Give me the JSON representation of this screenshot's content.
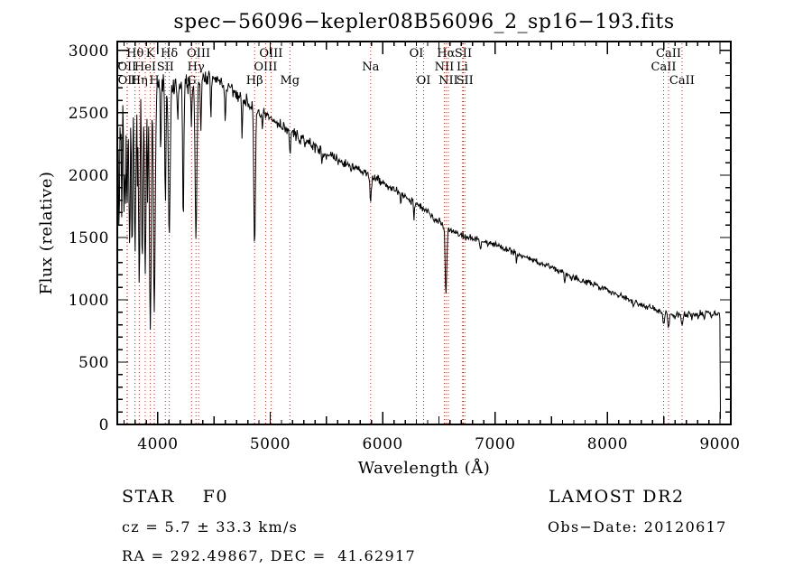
{
  "title": "spec−56096−kepler08B56096_2_sp16−193.fits",
  "annotations": {
    "class_line": "STAR    F0",
    "survey": "LAMOST DR2",
    "cz_line": "cz = 5.7 ± 33.3 km/s",
    "obs_date": "Obs−Date: 20120617",
    "ra_dec": "RA = 292.49867, DEC =  41.62917"
  },
  "chart_data": {
    "type": "line",
    "title": "spec−56096−kepler08B56096_2_sp16−193.fits",
    "xlabel": "Wavelength (Å)",
    "ylabel": "Flux (relative)",
    "xlim": [
      3640,
      9096
    ],
    "ylim": [
      0,
      3072
    ],
    "x_ticks": [
      4000,
      5000,
      6000,
      7000,
      8000,
      9000
    ],
    "y_ticks": [
      0,
      500,
      1000,
      1500,
      2000,
      2500,
      3000
    ],
    "x_minor_step": 100,
    "y_minor_step": 100,
    "line_color": "#000000",
    "marker_line_color": "#a03a30",
    "background": "#ffffff",
    "spectral_lines": [
      {
        "label": "OII",
        "wavelength": 3727,
        "row": 2
      },
      {
        "label": "OII",
        "wavelength": 3729,
        "row": 3
      },
      {
        "label": "Hθ",
        "wavelength": 3798,
        "row": 1
      },
      {
        "label": "Hη",
        "wavelength": 3835,
        "row": 3
      },
      {
        "label": "HeI",
        "wavelength": 3889,
        "row": 2
      },
      {
        "label": "K",
        "wavelength": 3934,
        "row": 1
      },
      {
        "label": "H",
        "wavelength": 3969,
        "row": 3
      },
      {
        "label": "SII",
        "wavelength": 4068,
        "row": 2
      },
      {
        "label": "Hδ",
        "wavelength": 4102,
        "row": 1
      },
      {
        "label": "G",
        "wavelength": 4300,
        "row": 3
      },
      {
        "label": "Hγ",
        "wavelength": 4340,
        "row": 2
      },
      {
        "label": "OIII",
        "wavelength": 4363,
        "row": 1
      },
      {
        "label": "Hβ",
        "wavelength": 4861,
        "row": 3
      },
      {
        "label": "OIII",
        "wavelength": 4959,
        "row": 2
      },
      {
        "label": "OIII",
        "wavelength": 5007,
        "row": 1
      },
      {
        "label": "Mg",
        "wavelength": 5175,
        "row": 3
      },
      {
        "label": "Na",
        "wavelength": 5893,
        "row": 2
      },
      {
        "label": "OI",
        "wavelength": 6300,
        "row": 1
      },
      {
        "label": "OI",
        "wavelength": 6364,
        "row": 3
      },
      {
        "label": "NII",
        "wavelength": 6548,
        "row": 2
      },
      {
        "label": "Hα",
        "wavelength": 6563,
        "row": 1
      },
      {
        "label": "NII",
        "wavelength": 6584,
        "row": 3
      },
      {
        "label": "Li",
        "wavelength": 6708,
        "row": 2
      },
      {
        "label": "SII",
        "wavelength": 6717,
        "row": 1
      },
      {
        "label": "SII",
        "wavelength": 6731,
        "row": 3
      },
      {
        "label": "CaII",
        "wavelength": 8498,
        "row": 2
      },
      {
        "label": "CaII",
        "wavelength": 8542,
        "row": 1
      },
      {
        "label": "CaII",
        "wavelength": 8662,
        "row": 3
      }
    ],
    "spectrum": {
      "seed": 7,
      "sample_step": 5,
      "end_wavelength": 9006,
      "end_drop": {
        "wavelength": 9000,
        "flux": 25
      },
      "continuum": [
        [
          3640,
          2380
        ],
        [
          3680,
          2520
        ],
        [
          3720,
          2610
        ],
        [
          3760,
          2660
        ],
        [
          3800,
          2700
        ],
        [
          3860,
          2720
        ],
        [
          3920,
          2730
        ],
        [
          3980,
          2750
        ],
        [
          4050,
          2740
        ],
        [
          4150,
          2690
        ],
        [
          4250,
          2720
        ],
        [
          4330,
          2760
        ],
        [
          4420,
          2780
        ],
        [
          4520,
          2770
        ],
        [
          4620,
          2700
        ],
        [
          4720,
          2640
        ],
        [
          4800,
          2590
        ],
        [
          4900,
          2510
        ],
        [
          5000,
          2450
        ],
        [
          5100,
          2400
        ],
        [
          5200,
          2340
        ],
        [
          5300,
          2280
        ],
        [
          5400,
          2230
        ],
        [
          5500,
          2170
        ],
        [
          5600,
          2120
        ],
        [
          5700,
          2080
        ],
        [
          5800,
          2030
        ],
        [
          5900,
          1990
        ],
        [
          6000,
          1940
        ],
        [
          6100,
          1880
        ],
        [
          6200,
          1830
        ],
        [
          6300,
          1770
        ],
        [
          6400,
          1700
        ],
        [
          6500,
          1630
        ],
        [
          6600,
          1560
        ],
        [
          6700,
          1520
        ],
        [
          6800,
          1490
        ],
        [
          6900,
          1465
        ],
        [
          7000,
          1445
        ],
        [
          7100,
          1410
        ],
        [
          7200,
          1370
        ],
        [
          7300,
          1330
        ],
        [
          7400,
          1295
        ],
        [
          7500,
          1260
        ],
        [
          7600,
          1225
        ],
        [
          7700,
          1185
        ],
        [
          7800,
          1145
        ],
        [
          7900,
          1115
        ],
        [
          8000,
          1080
        ],
        [
          8100,
          1040
        ],
        [
          8200,
          1000
        ],
        [
          8300,
          965
        ],
        [
          8400,
          930
        ],
        [
          8500,
          900
        ],
        [
          8600,
          885
        ],
        [
          8700,
          880
        ],
        [
          8800,
          890
        ],
        [
          8900,
          900
        ],
        [
          8960,
          885
        ],
        [
          9006,
          865
        ]
      ],
      "absorption_lines": [
        [
          3655,
          1600,
          5
        ],
        [
          3680,
          1750,
          4
        ],
        [
          3700,
          1850,
          4
        ],
        [
          3712,
          1700,
          5
        ],
        [
          3727,
          1580,
          5
        ],
        [
          3750,
          1470,
          6
        ],
        [
          3771,
          1500,
          6
        ],
        [
          3798,
          1330,
          7
        ],
        [
          3820,
          1780,
          4
        ],
        [
          3835,
          1140,
          7
        ],
        [
          3862,
          1260,
          6
        ],
        [
          3889,
          1190,
          7
        ],
        [
          3910,
          1700,
          4
        ],
        [
          3934,
          720,
          8
        ],
        [
          3969,
          900,
          8
        ],
        [
          4026,
          2120,
          4
        ],
        [
          4068,
          1750,
          5
        ],
        [
          4102,
          1490,
          8
        ],
        [
          4178,
          2400,
          4
        ],
        [
          4227,
          1560,
          5
        ],
        [
          4300,
          2430,
          5
        ],
        [
          4340,
          1490,
          8
        ],
        [
          4383,
          2350,
          4
        ],
        [
          4472,
          2450,
          4
        ],
        [
          4600,
          2390,
          4
        ],
        [
          4750,
          2280,
          4
        ],
        [
          4861,
          1390,
          7
        ],
        [
          4930,
          2330,
          4
        ],
        [
          5175,
          2180,
          6
        ],
        [
          5270,
          2250,
          4
        ],
        [
          5460,
          2070,
          4
        ],
        [
          5893,
          1800,
          6
        ],
        [
          6160,
          1760,
          4
        ],
        [
          6278,
          1670,
          4
        ],
        [
          6563,
          1050,
          7
        ],
        [
          6868,
          1400,
          4
        ],
        [
          7190,
          1300,
          4
        ],
        [
          7620,
          1140,
          5
        ],
        [
          7680,
          1170,
          4
        ],
        [
          8230,
          940,
          4
        ],
        [
          8498,
          800,
          7
        ],
        [
          8542,
          780,
          8
        ],
        [
          8598,
          855,
          6
        ],
        [
          8662,
          790,
          8
        ],
        [
          8750,
          845,
          6
        ],
        [
          8806,
          862,
          5
        ],
        [
          8863,
          850,
          6
        ],
        [
          8920,
          858,
          5
        ]
      ],
      "noise_sigma": [
        [
          3640,
          270
        ],
        [
          3760,
          230
        ],
        [
          3800,
          140
        ],
        [
          3900,
          115
        ],
        [
          4000,
          90
        ],
        [
          4300,
          80
        ],
        [
          4600,
          65
        ],
        [
          4900,
          55
        ],
        [
          5200,
          48
        ],
        [
          5600,
          42
        ],
        [
          6000,
          38
        ],
        [
          6500,
          33
        ],
        [
          7000,
          30
        ],
        [
          7600,
          27
        ],
        [
          8200,
          26
        ],
        [
          8700,
          29
        ],
        [
          9006,
          28
        ]
      ]
    }
  }
}
